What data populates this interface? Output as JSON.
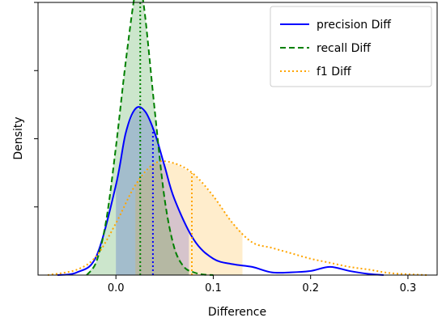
{
  "chart_data": {
    "type": "area",
    "title": "",
    "xlabel": "Difference",
    "ylabel": "Density",
    "xlim": [
      -0.08,
      0.33
    ],
    "ylim": [
      0,
      1
    ],
    "xticks": [
      0.0,
      0.1,
      0.2,
      0.3
    ],
    "xtick_labels": [
      "0.0",
      "0.1",
      "0.2",
      "0.3"
    ],
    "yticks": [
      0.25,
      0.5,
      0.75,
      1.0
    ],
    "ytick_labels_visible": false,
    "grid": false,
    "legend_position": "top-right",
    "series": [
      {
        "name": "precision Diff",
        "color": "#0000ff",
        "line_style": "solid",
        "fill_range": [
          0.0,
          0.075
        ],
        "mean": 0.038,
        "x": [
          -0.06,
          -0.04,
          -0.02,
          0.0,
          0.01,
          0.02,
          0.03,
          0.04,
          0.05,
          0.06,
          0.08,
          0.1,
          0.12,
          0.14,
          0.16,
          0.18,
          0.2,
          0.22,
          0.24,
          0.26,
          0.275
        ],
        "y": [
          0.0,
          0.01,
          0.07,
          0.33,
          0.52,
          0.61,
          0.6,
          0.52,
          0.4,
          0.28,
          0.13,
          0.06,
          0.04,
          0.03,
          0.01,
          0.01,
          0.015,
          0.03,
          0.015,
          0.004,
          0.0
        ]
      },
      {
        "name": "recall Diff",
        "color": "#008000",
        "line_style": "dashed",
        "fill_range": [
          -0.03,
          0.075
        ],
        "mean": 0.025,
        "x": [
          -0.03,
          -0.02,
          -0.01,
          0.0,
          0.01,
          0.02,
          0.025,
          0.03,
          0.04,
          0.05,
          0.06,
          0.07,
          0.08,
          0.09,
          0.1
        ],
        "y": [
          0.0,
          0.05,
          0.2,
          0.47,
          0.78,
          1.04,
          1.05,
          0.95,
          0.6,
          0.28,
          0.1,
          0.03,
          0.01,
          0.002,
          0.0
        ]
      },
      {
        "name": "f1 Diff",
        "color": "#ffa500",
        "line_style": "dotted",
        "fill_range": [
          0.02,
          0.13
        ],
        "mean": 0.078,
        "x": [
          -0.07,
          -0.04,
          -0.02,
          0.0,
          0.02,
          0.04,
          0.06,
          0.08,
          0.1,
          0.12,
          0.14,
          0.16,
          0.18,
          0.2,
          0.22,
          0.24,
          0.26,
          0.28,
          0.3,
          0.32
        ],
        "y": [
          0.0,
          0.02,
          0.07,
          0.19,
          0.33,
          0.41,
          0.41,
          0.37,
          0.29,
          0.19,
          0.12,
          0.1,
          0.08,
          0.06,
          0.045,
          0.03,
          0.02,
          0.008,
          0.003,
          0.0
        ]
      }
    ]
  }
}
